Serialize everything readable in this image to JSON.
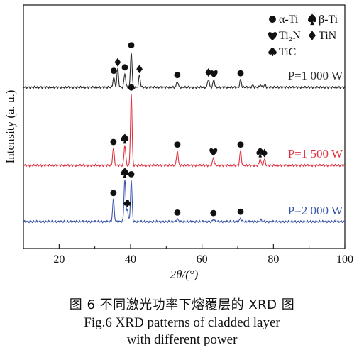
{
  "chart_data": {
    "type": "line",
    "xlabel": "2θ/(°)",
    "ylabel": "Intensity (a. u.)",
    "xlim": [
      10,
      100
    ],
    "xticks": [
      20,
      40,
      60,
      80,
      100
    ],
    "grid": false,
    "legend_position": "top-right",
    "legend": [
      {
        "symbol": "circle",
        "label": "α-Ti"
      },
      {
        "symbol": "spade",
        "label": "β-Ti"
      },
      {
        "symbol": "heart",
        "label": "Ti₂N"
      },
      {
        "symbol": "diamond",
        "label": "TiN"
      },
      {
        "symbol": "club",
        "label": "TiC"
      }
    ],
    "series": [
      {
        "name": "P=1 000 W",
        "color": "#2b2b2b",
        "baseline": 0.0,
        "peaks": [
          {
            "x": 35.3,
            "h": 0.6,
            "marker": "circle"
          },
          {
            "x": 36.4,
            "h": 1.1,
            "marker": "diamond"
          },
          {
            "x": 38.4,
            "h": 0.8,
            "marker": "circle"
          },
          {
            "x": 40.2,
            "h": 2.1,
            "marker": "circle"
          },
          {
            "x": 42.5,
            "h": 0.7,
            "marker": "diamond"
          },
          {
            "x": 53.1,
            "h": 0.35,
            "marker": "circle"
          },
          {
            "x": 61.8,
            "h": 0.5,
            "marker": "diamond"
          },
          {
            "x": 63.3,
            "h": 0.45,
            "marker": "heart"
          },
          {
            "x": 70.8,
            "h": 0.45,
            "marker": "circle"
          },
          {
            "x": 74.2,
            "h": 0.12,
            "marker": ""
          },
          {
            "x": 76.4,
            "h": 0.15,
            "marker": ""
          },
          {
            "x": 77.6,
            "h": 0.15,
            "marker": ""
          }
        ]
      },
      {
        "name": "P=1 500 W",
        "color": "#e0303f",
        "baseline": 0.0,
        "peaks": [
          {
            "x": 35.2,
            "h": 1.0,
            "marker": "circle"
          },
          {
            "x": 38.4,
            "h": 1.2,
            "marker": "spade"
          },
          {
            "x": 40.2,
            "h": 4.2,
            "marker": "circle"
          },
          {
            "x": 53.1,
            "h": 0.85,
            "marker": "circle"
          },
          {
            "x": 63.2,
            "h": 0.45,
            "marker": "heart"
          },
          {
            "x": 70.8,
            "h": 0.85,
            "marker": "circle"
          },
          {
            "x": 76.3,
            "h": 0.4,
            "marker": "spade"
          },
          {
            "x": 77.5,
            "h": 0.35,
            "marker": "diamond"
          }
        ]
      },
      {
        "name": "P=2 000 W",
        "color": "#3a56a8",
        "baseline": 0.0,
        "peaks": [
          {
            "x": 35.2,
            "h": 1.3,
            "marker": "circle"
          },
          {
            "x": 38.4,
            "h": 2.5,
            "marker": "spade"
          },
          {
            "x": 39.1,
            "h": 0.7,
            "marker": "club"
          },
          {
            "x": 40.2,
            "h": 2.4,
            "marker": "circle"
          },
          {
            "x": 53.1,
            "h": 0.15,
            "marker": "circle"
          },
          {
            "x": 63.2,
            "h": 0.12,
            "marker": "circle"
          },
          {
            "x": 70.8,
            "h": 0.2,
            "marker": "circle"
          },
          {
            "x": 76.5,
            "h": 0.1,
            "marker": ""
          }
        ]
      }
    ]
  },
  "caption": {
    "cn": "图 6    不同激光功率下熔覆层的 XRD 图",
    "en_line1": "Fig.6 XRD patterns of cladded layer",
    "en_line2": "with different power"
  }
}
